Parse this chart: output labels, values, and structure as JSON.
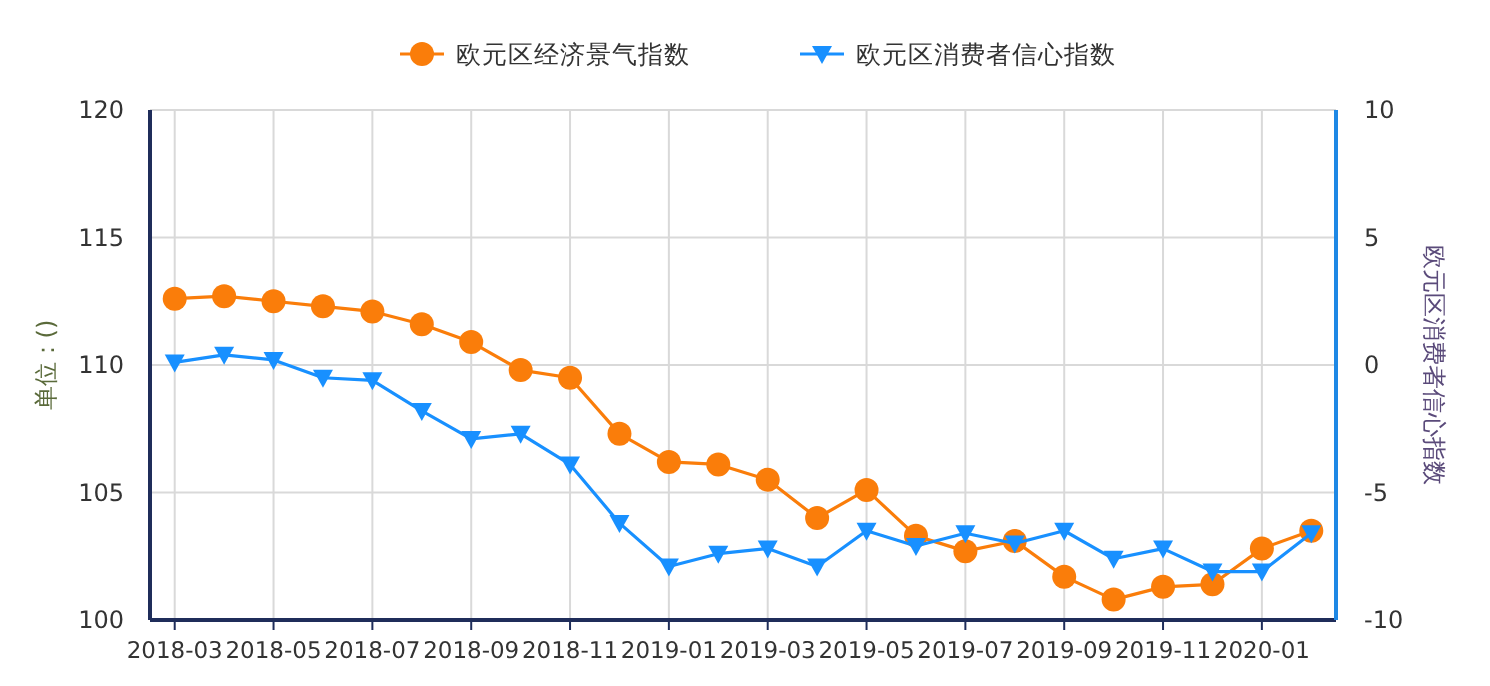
{
  "chart_data": {
    "type": "line",
    "categories": [
      "2018-03",
      null,
      "2018-05",
      null,
      "2018-07",
      null,
      "2018-09",
      null,
      "2018-11",
      null,
      "2019-01",
      null,
      "2019-03",
      null,
      "2019-05",
      null,
      "2019-07",
      null,
      "2019-09",
      null,
      "2019-11",
      null,
      "2020-01",
      null
    ],
    "series": [
      {
        "name": "欧元区经济景气指数",
        "color": "#fa7d0a",
        "marker": "circle",
        "values": [
          112.6,
          112.7,
          112.5,
          112.3,
          112.1,
          111.6,
          110.9,
          109.8,
          109.5,
          107.3,
          106.2,
          106.1,
          105.5,
          104.0,
          105.1,
          103.3,
          102.7,
          103.1,
          101.7,
          100.8,
          101.3,
          101.4,
          102.8,
          103.5
        ]
      },
      {
        "name": "欧元区消费者信心指数",
        "color": "#1890ff",
        "marker": "triangle",
        "axis": "y2",
        "values": [
          0.1,
          0.4,
          0.2,
          -0.5,
          -0.6,
          -1.8,
          -2.9,
          -2.7,
          -3.9,
          -6.2,
          -7.9,
          -7.4,
          -7.2,
          -7.9,
          -6.5,
          -7.1,
          -6.6,
          -7.0,
          -6.5,
          -7.6,
          -7.2,
          -8.1,
          -8.1,
          -6.6
        ]
      }
    ],
    "ylabel": "单位：()",
    "y2label": "欧元区消费者信心指数",
    "ylim": [
      100,
      120
    ],
    "yticks": [
      100,
      105,
      110,
      115,
      120
    ],
    "y2lim": [
      -10,
      10
    ],
    "y2ticks": [
      -10,
      -5,
      0,
      5,
      10
    ],
    "grid": true,
    "legend": "top"
  }
}
